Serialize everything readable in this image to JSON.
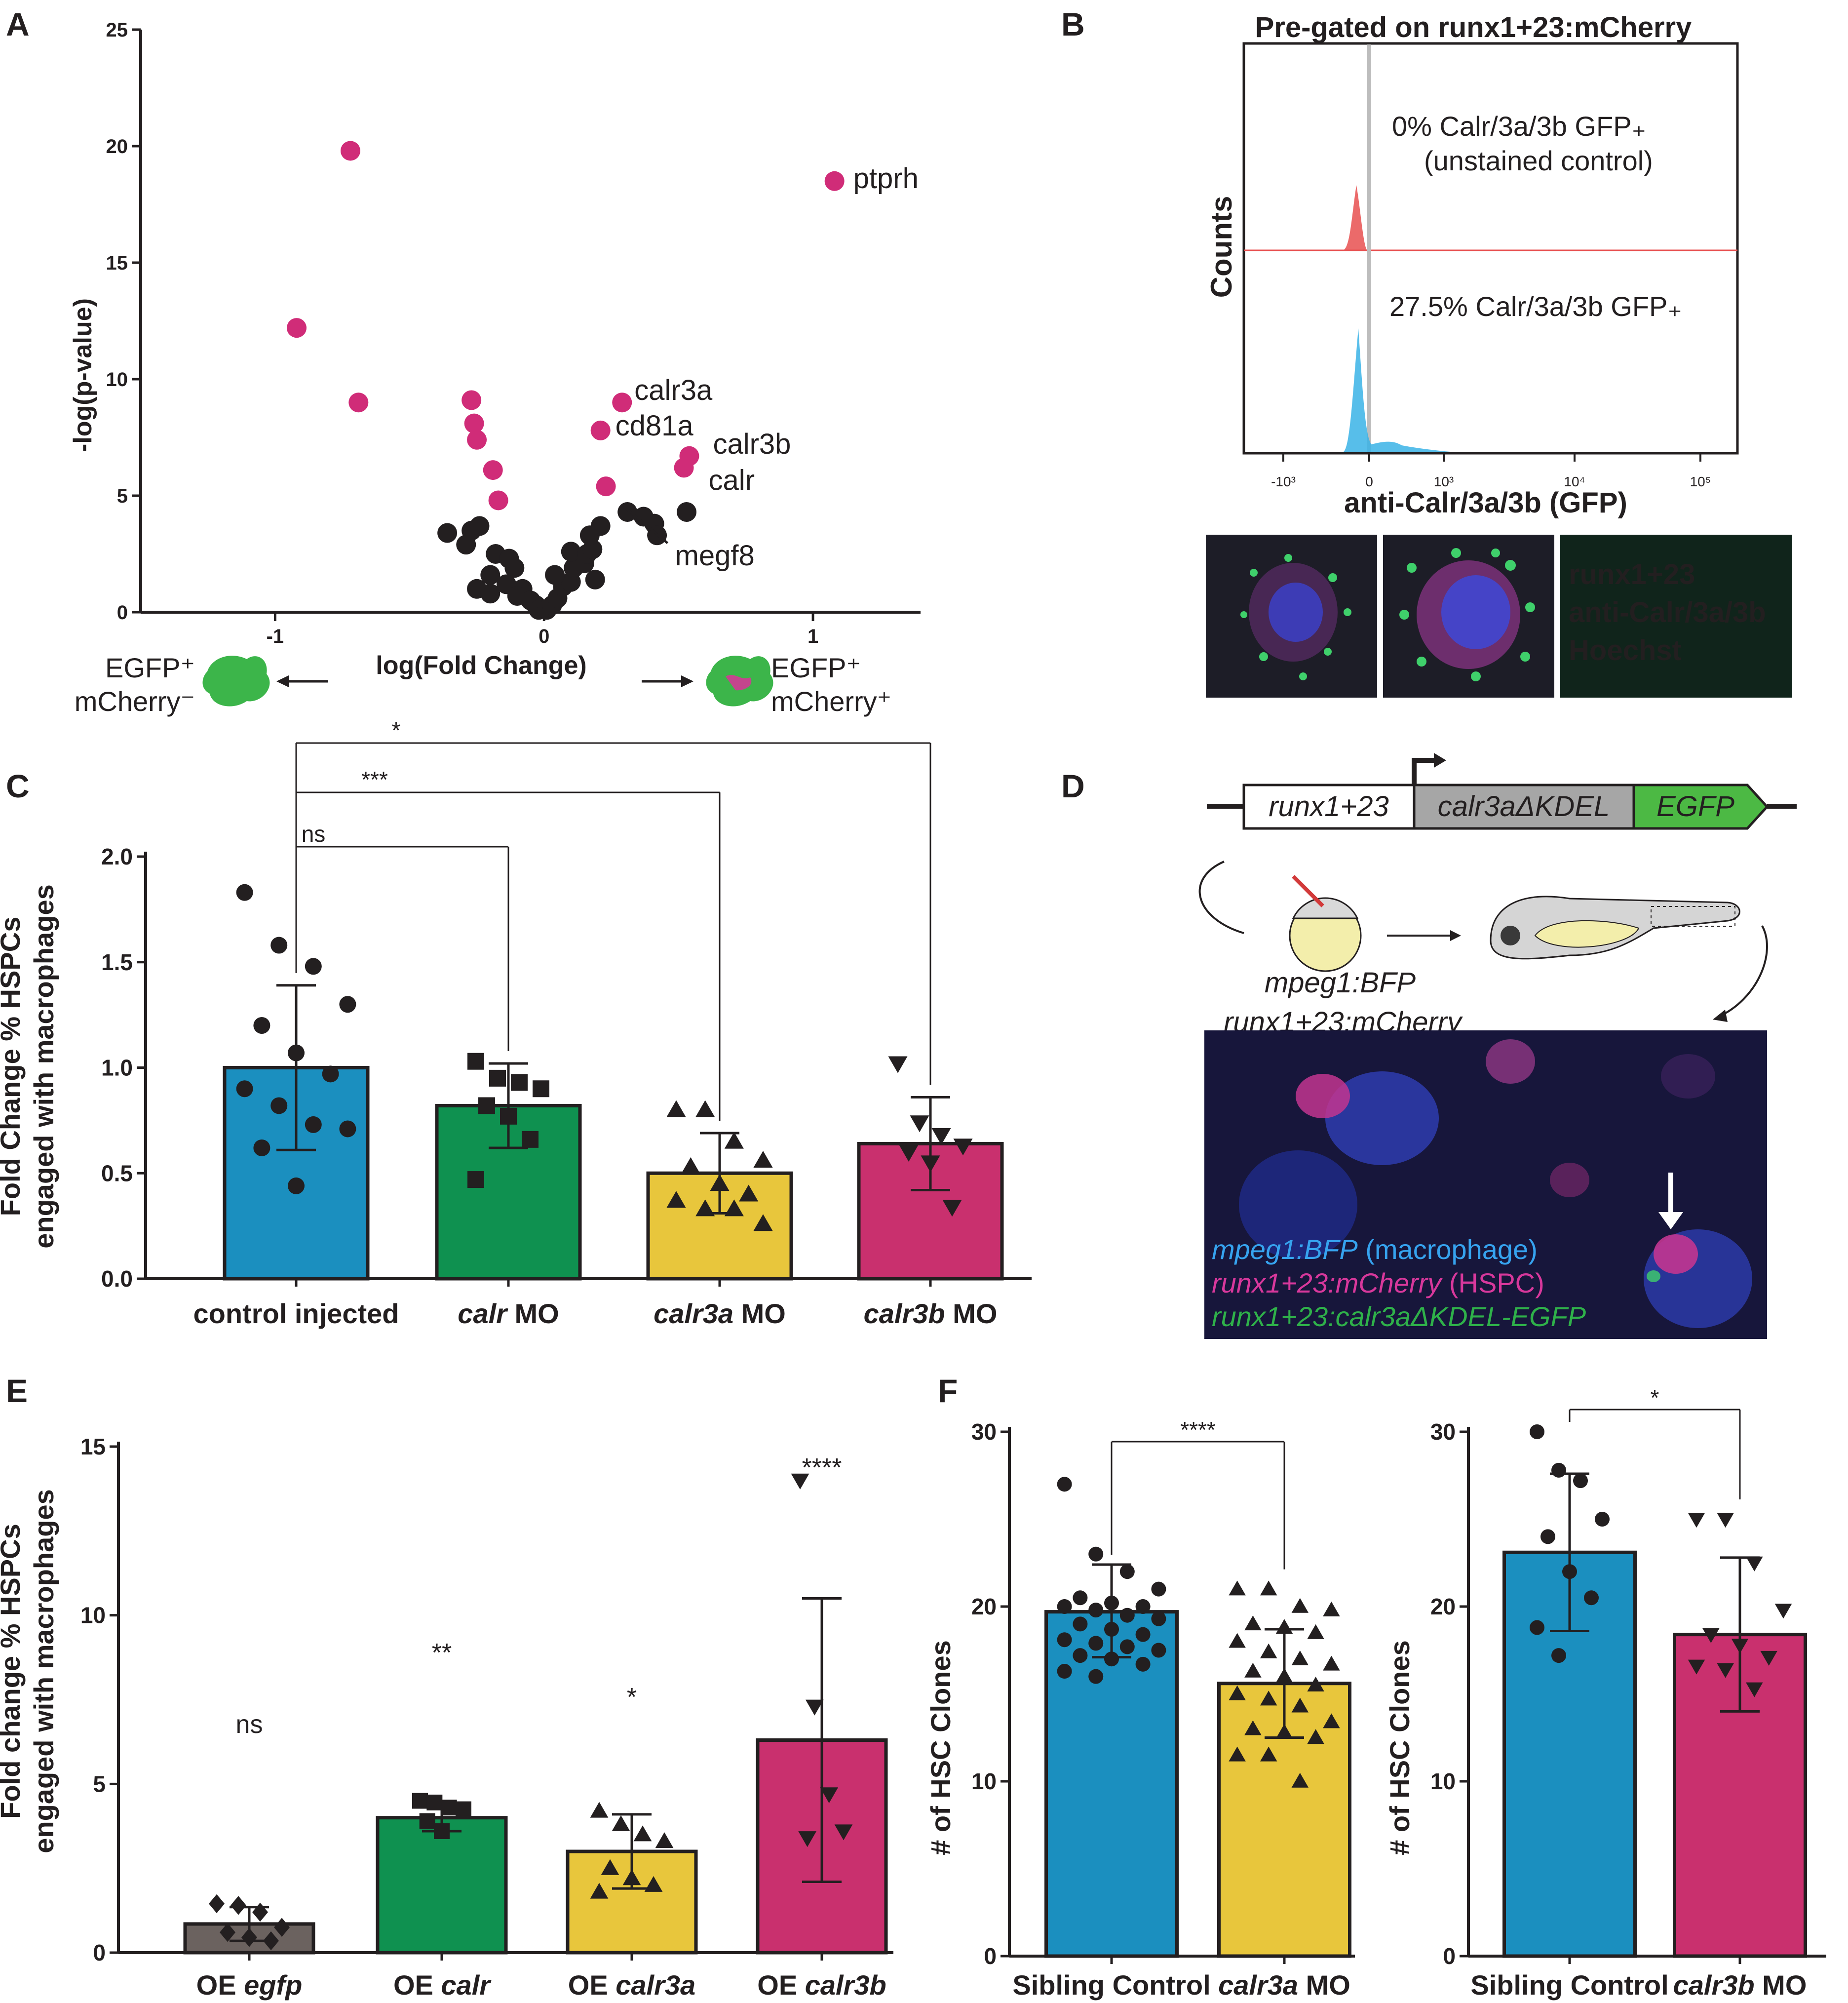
{
  "panel_labels": {
    "A": "A",
    "B": "B",
    "C": "C",
    "D": "D",
    "E": "E",
    "F": "F"
  },
  "colors": {
    "blue": "#1b8fbf",
    "green": "#0f9150",
    "yellow": "#e8c63c",
    "magenta": "#c9306e",
    "gray": "#6b625f",
    "pink_dot": "#d02c78",
    "dark": "#231f20",
    "cyan_hist": "#39b3e6",
    "red_hist": "#e85050",
    "legend_runx": "#e04dbb",
    "legend_anti": "#2fc149",
    "legend_hoechst": "#4d5be0"
  },
  "chart_data": [
    {
      "id": "A",
      "type": "scatter",
      "title": "",
      "xlabel": "log(Fold Change)",
      "ylabel": "-log(p-value)",
      "xlim": [
        -1.5,
        1.4
      ],
      "ylim": [
        0,
        25
      ],
      "x_ticks": [
        -1,
        0,
        1
      ],
      "y_ticks": [
        0,
        5,
        10,
        15,
        20,
        25
      ],
      "series": [
        {
          "color": "#d02c78",
          "points": [
            [
              -0.72,
              19.8
            ],
            [
              -0.92,
              12.2
            ],
            [
              -0.69,
              9.0
            ],
            [
              -0.27,
              9.1
            ],
            [
              -0.26,
              8.1
            ],
            [
              -0.25,
              7.4
            ],
            [
              -0.19,
              6.1
            ],
            [
              -0.17,
              4.8
            ],
            [
              0.29,
              9.0
            ],
            [
              0.21,
              7.8
            ],
            [
              0.54,
              6.7
            ],
            [
              0.52,
              6.2
            ],
            [
              0.23,
              5.4
            ],
            [
              1.08,
              18.5
            ]
          ]
        },
        {
          "color": "#231f20",
          "points": [
            [
              -0.36,
              3.4
            ],
            [
              -0.27,
              3.5
            ],
            [
              -0.24,
              3.7
            ],
            [
              -0.29,
              2.9
            ],
            [
              -0.18,
              2.5
            ],
            [
              -0.13,
              2.3
            ],
            [
              -0.11,
              1.9
            ],
            [
              -0.2,
              1.6
            ],
            [
              -0.14,
              1.2
            ],
            [
              -0.08,
              1.0
            ],
            [
              -0.25,
              1.0
            ],
            [
              -0.2,
              0.8
            ],
            [
              -0.1,
              0.7
            ],
            [
              -0.05,
              0.5
            ],
            [
              -0.03,
              0.3
            ],
            [
              -0.02,
              0.1
            ],
            [
              0.01,
              0.1
            ],
            [
              0.03,
              0.3
            ],
            [
              0.05,
              0.6
            ],
            [
              0.07,
              1.1
            ],
            [
              0.1,
              1.3
            ],
            [
              0.04,
              1.6
            ],
            [
              0.11,
              1.9
            ],
            [
              0.15,
              2.1
            ],
            [
              0.1,
              2.6
            ],
            [
              0.16,
              2.5
            ],
            [
              0.18,
              2.7
            ],
            [
              0.17,
              3.3
            ],
            [
              0.21,
              3.7
            ],
            [
              0.19,
              1.4
            ],
            [
              0.31,
              4.3
            ],
            [
              0.37,
              4.1
            ],
            [
              0.41,
              3.8
            ],
            [
              0.53,
              4.3
            ],
            [
              0.42,
              3.3
            ]
          ]
        }
      ],
      "annotations": [
        {
          "text": "ptprh",
          "x": 1.08,
          "y": 18.5
        },
        {
          "text": "calr3a",
          "x": 0.29,
          "y": 9.0
        },
        {
          "text": "cd81a",
          "x": 0.21,
          "y": 7.8
        },
        {
          "text": "calr3b",
          "x": 0.54,
          "y": 6.7
        },
        {
          "text": "calr",
          "x": 0.52,
          "y": 6.2
        },
        {
          "text": "megf8",
          "x": 0.23,
          "y": 5.4
        }
      ],
      "bottom_labels": {
        "left_line1": "EGFP⁺",
        "left_line2": "mCherry⁻",
        "right_line1": "EGFP⁺",
        "right_line2": "mCherry⁺"
      }
    },
    {
      "id": "B",
      "type": "area",
      "title": "Pre-gated on runx1+23:mCherry",
      "xlabel": "anti-Calr/3a/3b (GFP)",
      "ylabel": "Counts",
      "x_tick_labels": [
        "-10³",
        "0",
        "10³",
        "10⁴",
        "10⁵"
      ],
      "annotations": [
        "0% Calr/3a/3b GFP₊",
        "(unstained control)",
        "27.5% Calr/3a/3b GFP₊"
      ],
      "series": [
        {
          "name": "unstained control"
        },
        {
          "name": "stained"
        }
      ]
    },
    {
      "id": "C",
      "type": "bar",
      "xlabel": "",
      "ylabel": "Fold Change % HSPCs engaged with macrophages",
      "ylim": [
        0,
        2.0
      ],
      "y_ticks": [
        "0.0",
        "0.5",
        "1.0",
        "1.5",
        "2.0"
      ],
      "categories": [
        {
          "italic": "",
          "plain": "control injected"
        },
        {
          "italic": "calr",
          "plain": " MO"
        },
        {
          "italic": "calr3a",
          "plain": " MO"
        },
        {
          "italic": "calr3b",
          "plain": " MO"
        }
      ],
      "values": [
        1.0,
        0.82,
        0.5,
        0.64
      ],
      "errors": [
        [
          0.61,
          1.39
        ],
        [
          0.62,
          1.02
        ],
        [
          0.31,
          0.69
        ],
        [
          0.42,
          0.86
        ]
      ],
      "markers": [
        "circle",
        "square",
        "triangle",
        "triangle-down"
      ],
      "points": [
        [
          1.83,
          1.58,
          1.48,
          1.3,
          1.2,
          1.07,
          0.97,
          0.9,
          0.82,
          0.73,
          0.71,
          0.62,
          0.44
        ],
        [
          1.03,
          0.95,
          0.93,
          0.9,
          0.82,
          0.77,
          0.66,
          0.47
        ],
        [
          0.8,
          0.8,
          0.65,
          0.56,
          0.53,
          0.45,
          0.4,
          0.37,
          0.33,
          0.33,
          0.26
        ],
        [
          1.02,
          0.74,
          0.68,
          0.63,
          0.6,
          0.55,
          0.34
        ]
      ],
      "comparisons": [
        {
          "to": 1,
          "label": "ns"
        },
        {
          "to": 2,
          "label": "***"
        },
        {
          "to": 3,
          "label": "*"
        }
      ]
    },
    {
      "id": "D",
      "type": "other",
      "construct": {
        "promoter": "runx1+23",
        "gene": "calr3aΔKDEL",
        "reporter": "EGFP"
      },
      "embryo_label_1": "mpeg1:BFP",
      "embryo_label_2": "runx1+23:mCherry",
      "legend": [
        {
          "italic": "mpeg1:BFP",
          "plain": " (macrophage)"
        },
        {
          "italic": "runx1+23:mCherry",
          "plain": " (HSPC)"
        },
        {
          "italic": "runx1+23:calr3aΔKDEL-EGFP",
          "plain": ""
        }
      ]
    },
    {
      "id": "E",
      "type": "bar",
      "ylabel": "Fold change % HSPCs engaged with macrophages",
      "ylim": [
        0,
        15
      ],
      "y_ticks": [
        "0",
        "5",
        "10",
        "15"
      ],
      "categories": [
        {
          "italic": "egfp",
          "plain": "OE "
        },
        {
          "italic": "calr",
          "plain": "OE "
        },
        {
          "italic": "calr3a",
          "plain": "OE "
        },
        {
          "italic": "calr3b",
          "plain": "OE "
        }
      ],
      "values": [
        0.85,
        4.0,
        3.0,
        6.3
      ],
      "errors": [
        [
          0.35,
          1.35
        ],
        [
          3.6,
          4.4
        ],
        [
          1.9,
          4.1
        ],
        [
          2.1,
          10.5
        ]
      ],
      "markers": [
        "diamond",
        "square",
        "triangle",
        "triangle-down"
      ],
      "points": [
        [
          1.45,
          1.4,
          1.2,
          0.75,
          0.6,
          0.45,
          0.35
        ],
        [
          4.5,
          4.45,
          4.3,
          4.25,
          3.9,
          3.6
        ],
        [
          4.2,
          3.8,
          3.5,
          3.3,
          2.5,
          2.2,
          2.0,
          1.8
        ],
        [
          14.0,
          7.3,
          4.7,
          3.6,
          3.4
        ]
      ],
      "significance": [
        "ns",
        "**",
        "*",
        "****"
      ]
    },
    {
      "id": "F1",
      "type": "bar",
      "ylabel": "# of HSC Clones",
      "ylim": [
        0,
        30
      ],
      "y_ticks": [
        "0",
        "10",
        "20",
        "30"
      ],
      "categories": [
        {
          "italic": "",
          "plain": "Sibling Control"
        },
        {
          "italic": "calr3a",
          "plain": " MO"
        }
      ],
      "values": [
        19.7,
        15.6
      ],
      "errors": [
        [
          17.1,
          22.4
        ],
        [
          12.5,
          18.7
        ]
      ],
      "markers": [
        "circle",
        "triangle"
      ],
      "points": [
        [
          27,
          23,
          22,
          21,
          20.5,
          20.2,
          20,
          20,
          19.8,
          19.5,
          19.3,
          19,
          18.7,
          18.4,
          18.1,
          17.9,
          17.7,
          17.5,
          17.2,
          17.0,
          16.7,
          16.3,
          16.0
        ],
        [
          21,
          21,
          20,
          19.8,
          19,
          18.8,
          18.5,
          18,
          17.4,
          17,
          16.7,
          16.3,
          16,
          15.5,
          15,
          14.7,
          14.3,
          13.4,
          13,
          12.8,
          12.5,
          11.5,
          11.5,
          10
        ]
      ],
      "comparison_label": "****"
    },
    {
      "id": "F2",
      "type": "bar",
      "ylabel": "# of HSC Clones",
      "ylim": [
        0,
        30
      ],
      "y_ticks": [
        "0",
        "10",
        "20",
        "30"
      ],
      "categories": [
        {
          "italic": "",
          "plain": "Sibling Control"
        },
        {
          "italic": "calr3b",
          "plain": " MO"
        }
      ],
      "values": [
        23.1,
        18.4
      ],
      "errors": [
        [
          18.6,
          27.6
        ],
        [
          14.0,
          22.8
        ]
      ],
      "markers": [
        "circle",
        "triangle-down"
      ],
      "points": [
        [
          30,
          27.8,
          27.2,
          25,
          24,
          22,
          20.5,
          18.8,
          17.2
        ],
        [
          25,
          25,
          22.5,
          19.8,
          18.4,
          17.8,
          17.1,
          16.6,
          16.4,
          15.3
        ]
      ],
      "comparison_label": "*"
    }
  ]
}
